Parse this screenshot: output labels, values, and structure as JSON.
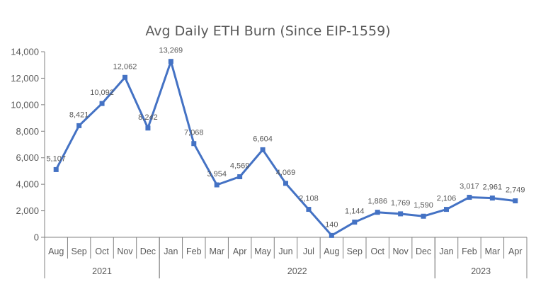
{
  "chart_data": {
    "type": "line",
    "title": "Avg Daily ETH Burn (Since EIP-1559)",
    "xlabel": "",
    "ylabel": "",
    "ylim": [
      0,
      14000
    ],
    "yticks": [
      0,
      2000,
      4000,
      6000,
      8000,
      10000,
      12000,
      14000
    ],
    "ytick_labels": [
      "0",
      "2,000",
      "4,000",
      "6,000",
      "8,000",
      "10,000",
      "12,000",
      "14,000"
    ],
    "grid": false,
    "legend": null,
    "categories": [
      "Aug",
      "Sep",
      "Oct",
      "Nov",
      "Dec",
      "Jan",
      "Feb",
      "Mar",
      "Apr",
      "May",
      "Jun",
      "Jul",
      "Aug",
      "Sep",
      "Oct",
      "Nov",
      "Dec",
      "Jan",
      "Feb",
      "Mar",
      "Apr"
    ],
    "category_groups": [
      {
        "label": "2021",
        "start": 0,
        "count": 5
      },
      {
        "label": "2022",
        "start": 5,
        "count": 12
      },
      {
        "label": "2023",
        "start": 17,
        "count": 4
      }
    ],
    "series": [
      {
        "name": "Avg Daily ETH Burn",
        "color": "#4472C4",
        "values": [
          5107,
          8421,
          10092,
          12062,
          8242,
          13269,
          7068,
          3954,
          4569,
          6604,
          4069,
          2108,
          140,
          1144,
          1886,
          1769,
          1590,
          2106,
          3017,
          2961,
          2749
        ],
        "data_labels": [
          "5,107",
          "8,421",
          "10,092",
          "12,062",
          "8,242",
          "13,269",
          "7,068",
          "3,954",
          "4,569",
          "6,604",
          "4,069",
          "2,108",
          "140",
          "1,144",
          "1,886",
          "1,769",
          "1,590",
          "2,106",
          "3,017",
          "2,961",
          "2,749"
        ]
      }
    ]
  }
}
